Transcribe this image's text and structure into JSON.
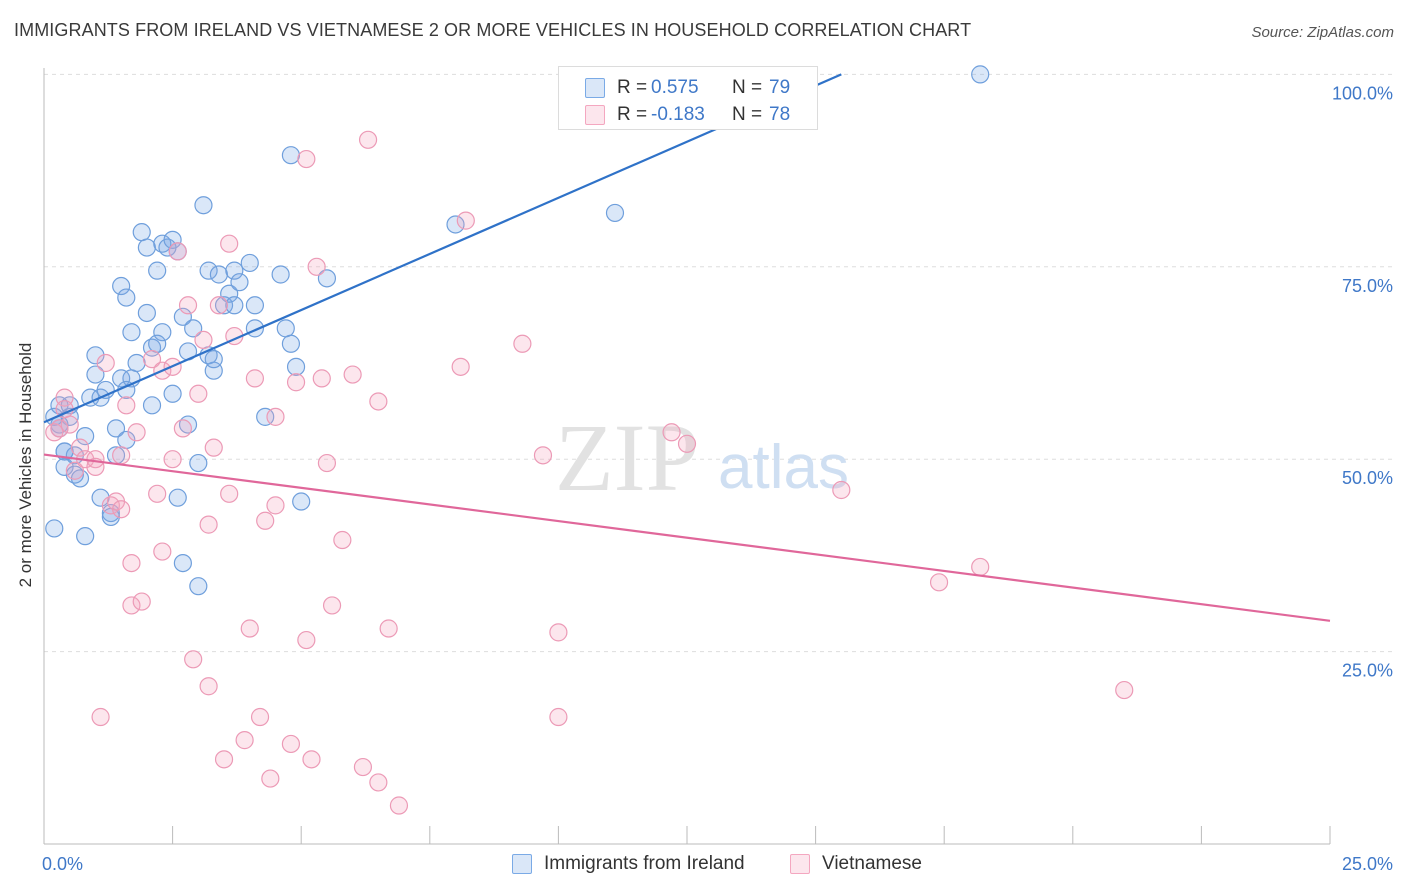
{
  "header": {
    "title": "IMMIGRANTS FROM IRELAND VS VIETNAMESE 2 OR MORE VEHICLES IN HOUSEHOLD CORRELATION CHART",
    "source": "Source: ZipAtlas.com"
  },
  "watermark": {
    "zip": "ZIP",
    "atlas": "atlas"
  },
  "legend_stats": [
    {
      "r_label": "R =",
      "r_value": "0.575",
      "n_label": "N =",
      "n_value": "79",
      "color": "#7aaae6"
    },
    {
      "r_label": "R =",
      "r_value": "-0.183",
      "n_label": "N =",
      "n_value": "78",
      "color": "#f4a7c0"
    }
  ],
  "legend_series": [
    {
      "label": "Immigrants from Ireland",
      "color": "#7aaae6"
    },
    {
      "label": "Vietnamese",
      "color": "#f4a7c0"
    }
  ],
  "colors": {
    "blue_fill": "rgba(122,170,230,0.28)",
    "blue_stroke": "#6f9fdc",
    "blue_line": "#2f72c8",
    "pink_fill": "rgba(244,167,192,0.28)",
    "pink_stroke": "#ec9ab6",
    "pink_line": "#e0679a",
    "value_text": "#3f78c8",
    "grid": "#dddddd"
  },
  "chart_data": {
    "type": "scatter",
    "title": "IMMIGRANTS FROM IRELAND VS VIETNAMESE 2 OR MORE VEHICLES IN HOUSEHOLD CORRELATION CHART",
    "xlabel": "",
    "ylabel": "2 or more Vehicles in Household",
    "xlim": [
      0,
      25
    ],
    "ylim": [
      0,
      102
    ],
    "x_tick_labels": [
      "0.0%",
      "25.0%"
    ],
    "y_tick_labels": [
      "100.0%",
      "75.0%",
      "50.0%",
      "25.0%"
    ],
    "y_ticks": [
      100,
      75,
      50,
      25
    ],
    "grid": true,
    "legend_position": "top-center",
    "series": [
      {
        "name": "Immigrants from Ireland",
        "trend": {
          "x": [
            0.0,
            15.5
          ],
          "y": [
            54.8,
            100.0
          ]
        },
        "points": [
          [
            0.2,
            41.0
          ],
          [
            0.2,
            55.5
          ],
          [
            0.3,
            57.0
          ],
          [
            0.3,
            54.5
          ],
          [
            0.4,
            51.0
          ],
          [
            0.4,
            49.0
          ],
          [
            0.5,
            55.5
          ],
          [
            0.5,
            57.0
          ],
          [
            0.6,
            48.0
          ],
          [
            0.6,
            50.5
          ],
          [
            0.7,
            47.5
          ],
          [
            0.8,
            53.0
          ],
          [
            0.8,
            40.0
          ],
          [
            0.9,
            58.0
          ],
          [
            1.0,
            61.0
          ],
          [
            1.0,
            63.5
          ],
          [
            1.1,
            58.0
          ],
          [
            1.1,
            45.0
          ],
          [
            1.2,
            59.0
          ],
          [
            1.3,
            43.0
          ],
          [
            1.3,
            42.5
          ],
          [
            1.4,
            50.5
          ],
          [
            1.4,
            54.0
          ],
          [
            1.5,
            60.5
          ],
          [
            1.5,
            72.5
          ],
          [
            1.6,
            71.0
          ],
          [
            1.6,
            52.5
          ],
          [
            1.7,
            66.5
          ],
          [
            1.7,
            60.5
          ],
          [
            1.8,
            62.5
          ],
          [
            1.9,
            79.5
          ],
          [
            2.0,
            77.5
          ],
          [
            2.0,
            69.0
          ],
          [
            2.1,
            57.0
          ],
          [
            2.1,
            64.5
          ],
          [
            2.2,
            74.5
          ],
          [
            2.3,
            78.0
          ],
          [
            2.3,
            66.5
          ],
          [
            2.4,
            77.5
          ],
          [
            2.5,
            78.5
          ],
          [
            2.5,
            58.5
          ],
          [
            2.6,
            45.0
          ],
          [
            2.6,
            77.0
          ],
          [
            2.7,
            68.5
          ],
          [
            2.7,
            36.5
          ],
          [
            2.8,
            64.0
          ],
          [
            2.8,
            54.5
          ],
          [
            2.9,
            67.0
          ],
          [
            3.0,
            49.5
          ],
          [
            3.0,
            33.5
          ],
          [
            3.1,
            83.0
          ],
          [
            3.2,
            63.5
          ],
          [
            3.2,
            74.5
          ],
          [
            3.3,
            61.5
          ],
          [
            3.3,
            63.0
          ],
          [
            3.4,
            74.0
          ],
          [
            3.5,
            70.0
          ],
          [
            3.6,
            71.5
          ],
          [
            3.7,
            74.5
          ],
          [
            3.7,
            70.0
          ],
          [
            3.8,
            73.0
          ],
          [
            4.0,
            75.5
          ],
          [
            4.1,
            67.0
          ],
          [
            4.1,
            70.0
          ],
          [
            4.3,
            55.5
          ],
          [
            4.6,
            74.0
          ],
          [
            4.7,
            67.0
          ],
          [
            4.8,
            65.0
          ],
          [
            4.8,
            89.5
          ],
          [
            4.9,
            62.0
          ],
          [
            5.0,
            44.5
          ],
          [
            5.5,
            73.5
          ],
          [
            8.0,
            80.5
          ],
          [
            11.1,
            82.0
          ],
          [
            18.2,
            100.0
          ],
          [
            0.3,
            54.0
          ],
          [
            0.4,
            51.0
          ],
          [
            2.2,
            65.0
          ],
          [
            1.6,
            59.0
          ]
        ]
      },
      {
        "name": "Vietnamese",
        "trend": {
          "x": [
            0.0,
            25.0
          ],
          "y": [
            50.6,
            29.0
          ]
        },
        "points": [
          [
            0.2,
            53.5
          ],
          [
            0.3,
            54.0
          ],
          [
            0.4,
            58.0
          ],
          [
            0.5,
            54.5
          ],
          [
            0.6,
            48.5
          ],
          [
            0.7,
            51.5
          ],
          [
            0.8,
            50.0
          ],
          [
            1.0,
            50.0
          ],
          [
            1.0,
            49.0
          ],
          [
            1.1,
            16.5
          ],
          [
            1.2,
            62.5
          ],
          [
            1.3,
            44.0
          ],
          [
            1.4,
            44.5
          ],
          [
            1.5,
            50.5
          ],
          [
            1.6,
            57.0
          ],
          [
            1.7,
            36.5
          ],
          [
            1.7,
            31.0
          ],
          [
            1.8,
            53.5
          ],
          [
            1.9,
            31.5
          ],
          [
            2.1,
            63.0
          ],
          [
            2.2,
            45.5
          ],
          [
            2.3,
            61.5
          ],
          [
            2.3,
            38.0
          ],
          [
            2.5,
            62.0
          ],
          [
            2.6,
            77.0
          ],
          [
            2.7,
            54.0
          ],
          [
            2.8,
            70.0
          ],
          [
            2.9,
            24.0
          ],
          [
            3.0,
            58.5
          ],
          [
            3.1,
            65.5
          ],
          [
            3.2,
            41.5
          ],
          [
            3.2,
            20.5
          ],
          [
            3.3,
            51.5
          ],
          [
            3.4,
            70.0
          ],
          [
            3.5,
            11.0
          ],
          [
            3.6,
            78.0
          ],
          [
            3.7,
            66.0
          ],
          [
            3.9,
            13.5
          ],
          [
            4.1,
            60.5
          ],
          [
            4.2,
            16.5
          ],
          [
            4.3,
            42.0
          ],
          [
            4.4,
            8.5
          ],
          [
            4.5,
            44.0
          ],
          [
            4.5,
            55.5
          ],
          [
            4.8,
            13.0
          ],
          [
            4.9,
            60.0
          ],
          [
            5.1,
            89.0
          ],
          [
            5.1,
            26.5
          ],
          [
            5.2,
            11.0
          ],
          [
            5.3,
            75.0
          ],
          [
            5.4,
            60.5
          ],
          [
            5.5,
            49.5
          ],
          [
            5.6,
            31.0
          ],
          [
            5.8,
            39.5
          ],
          [
            6.0,
            61.0
          ],
          [
            6.2,
            10.0
          ],
          [
            6.3,
            91.5
          ],
          [
            6.5,
            8.0
          ],
          [
            6.5,
            57.5
          ],
          [
            6.7,
            28.0
          ],
          [
            6.9,
            5.0
          ],
          [
            8.1,
            62.0
          ],
          [
            8.2,
            81.0
          ],
          [
            9.3,
            65.0
          ],
          [
            9.7,
            50.5
          ],
          [
            10.0,
            27.5
          ],
          [
            10.0,
            16.5
          ],
          [
            12.2,
            53.5
          ],
          [
            12.5,
            52.0
          ],
          [
            15.5,
            46.0
          ],
          [
            17.4,
            34.0
          ],
          [
            18.2,
            36.0
          ],
          [
            21.0,
            20.0
          ],
          [
            0.4,
            56.5
          ],
          [
            2.5,
            50.0
          ],
          [
            1.5,
            43.5
          ],
          [
            3.6,
            45.5
          ],
          [
            4.0,
            28.0
          ]
        ]
      }
    ]
  }
}
